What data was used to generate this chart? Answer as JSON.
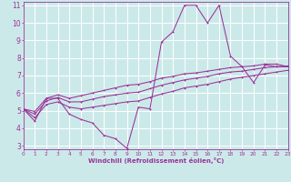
{
  "xlabel": "Windchill (Refroidissement éolien,°C)",
  "xlim": [
    0,
    23
  ],
  "ylim": [
    2.8,
    11.2
  ],
  "xticks": [
    0,
    1,
    2,
    3,
    4,
    5,
    6,
    7,
    8,
    9,
    10,
    11,
    12,
    13,
    14,
    15,
    16,
    17,
    18,
    19,
    20,
    21,
    22,
    23
  ],
  "yticks": [
    3,
    4,
    5,
    6,
    7,
    8,
    9,
    10,
    11
  ],
  "bg_color": "#cce9e9",
  "grid_color": "#ffffff",
  "line_color": "#993399",
  "curve1_y": [
    5.1,
    4.4,
    5.7,
    5.7,
    4.8,
    4.5,
    4.3,
    3.6,
    3.4,
    2.85,
    5.2,
    5.1,
    8.9,
    9.5,
    11.0,
    11.0,
    10.0,
    11.0,
    8.1,
    7.5,
    6.6,
    7.6,
    7.5,
    7.5
  ],
  "curve2_y": [
    5.1,
    4.8,
    5.55,
    5.75,
    5.5,
    5.5,
    5.65,
    5.8,
    5.9,
    6.0,
    6.05,
    6.25,
    6.45,
    6.6,
    6.75,
    6.85,
    6.95,
    7.1,
    7.2,
    7.25,
    7.35,
    7.45,
    7.5,
    7.55
  ],
  "curve3_y": [
    5.1,
    4.6,
    5.35,
    5.5,
    5.2,
    5.1,
    5.2,
    5.3,
    5.4,
    5.5,
    5.55,
    5.75,
    5.95,
    6.1,
    6.3,
    6.4,
    6.5,
    6.65,
    6.8,
    6.9,
    7.0,
    7.1,
    7.2,
    7.3
  ],
  "curve4_y": [
    5.1,
    4.95,
    5.7,
    5.9,
    5.7,
    5.85,
    6.0,
    6.15,
    6.3,
    6.45,
    6.5,
    6.65,
    6.85,
    6.95,
    7.1,
    7.15,
    7.25,
    7.35,
    7.45,
    7.5,
    7.55,
    7.65,
    7.65,
    7.5
  ]
}
